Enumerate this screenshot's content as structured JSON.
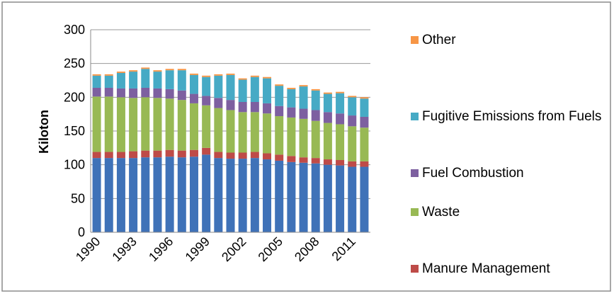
{
  "chart_data": {
    "type": "stacked_bar",
    "y_label": "Kiloton",
    "categories": [
      "1990",
      null,
      null,
      "1993",
      null,
      null,
      "1996",
      null,
      null,
      "1999",
      null,
      null,
      "2002",
      null,
      null,
      "2005",
      null,
      null,
      "2008",
      null,
      null,
      "2011",
      null
    ],
    "series": [
      {
        "color": "#3f72b8",
        "values": [
          110,
          110,
          110,
          110,
          111,
          111,
          112,
          111,
          112,
          115,
          110,
          109,
          109,
          110,
          108,
          106,
          104,
          103,
          102,
          100,
          99,
          97,
          97
        ]
      },
      {
        "name": "Manure Management",
        "color": "#be4b48",
        "values": [
          9,
          9,
          9,
          10,
          10,
          10,
          10,
          10,
          10,
          10,
          9,
          9,
          9,
          9,
          9,
          9,
          9,
          8,
          8,
          8,
          8,
          8,
          8
        ]
      },
      {
        "name": "Waste",
        "color": "#98b954",
        "values": [
          82,
          82,
          81,
          79,
          79,
          78,
          76,
          75,
          69,
          63,
          65,
          63,
          60,
          59,
          59,
          57,
          57,
          57,
          55,
          54,
          53,
          52,
          50
        ]
      },
      {
        "name": "Fuel Combustion",
        "color": "#7d60a0",
        "values": [
          13,
          13,
          13,
          14,
          14,
          14,
          14,
          14,
          14,
          14,
          15,
          15,
          15,
          15,
          15,
          15,
          15,
          15,
          16,
          16,
          16,
          16,
          16
        ]
      },
      {
        "name": "Fugitive Emissions from Fuels",
        "color": "#46aac5",
        "values": [
          18,
          18,
          23,
          25,
          28,
          25,
          28,
          30,
          28,
          28,
          33,
          37,
          33,
          37,
          37,
          30,
          27,
          33,
          29,
          27,
          30,
          27,
          27
        ]
      },
      {
        "name": "Other",
        "color": "#f79646",
        "values": [
          2,
          2,
          2,
          2,
          2,
          2,
          2,
          2,
          2,
          2,
          2,
          2,
          2,
          2,
          2,
          2,
          2,
          2,
          2,
          2,
          2,
          2,
          2
        ]
      }
    ],
    "ylim": [
      0,
      300
    ],
    "yticks": [
      0,
      50,
      100,
      150,
      200,
      250,
      300
    ],
    "grid": true,
    "legend": "right"
  }
}
